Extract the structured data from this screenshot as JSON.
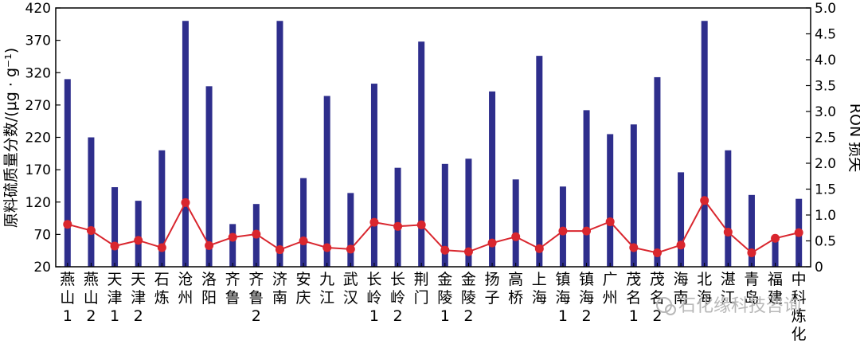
{
  "chart_data": {
    "type": "bar",
    "categories": [
      [
        "燕",
        "山",
        "1"
      ],
      [
        "燕",
        "山",
        "2"
      ],
      [
        "天",
        "津",
        "1"
      ],
      [
        "天",
        "津",
        "2"
      ],
      [
        "石",
        "炼"
      ],
      [
        "沧",
        "州"
      ],
      [
        "洛",
        "阳"
      ],
      [
        "齐",
        "鲁"
      ],
      [
        "齐",
        "鲁",
        "2"
      ],
      [
        "济",
        "南"
      ],
      [
        "安",
        "庆"
      ],
      [
        "九",
        "江"
      ],
      [
        "武",
        "汉"
      ],
      [
        "长",
        "岭",
        "1"
      ],
      [
        "长",
        "岭",
        "2"
      ],
      [
        "荆",
        "门"
      ],
      [
        "金",
        "陵",
        "1"
      ],
      [
        "金",
        "陵",
        "2"
      ],
      [
        "扬",
        "子"
      ],
      [
        "高",
        "桥"
      ],
      [
        "上",
        "海"
      ],
      [
        "镇",
        "海",
        "1"
      ],
      [
        "镇",
        "海",
        "2"
      ],
      [
        "广",
        "州"
      ],
      [
        "茂",
        "名",
        "1"
      ],
      [
        "茂",
        "名",
        "2"
      ],
      [
        "海",
        "南"
      ],
      [
        "北",
        "海"
      ],
      [
        "湛",
        "江"
      ],
      [
        "青",
        "岛"
      ],
      [
        "福",
        "建"
      ],
      [
        "中",
        "科",
        "炼",
        "化"
      ]
    ],
    "series": [
      {
        "axis": "left",
        "kind": "bar",
        "color": "#2e2e8c",
        "values": [
          310,
          220,
          143,
          122,
          200,
          400,
          299,
          86,
          117,
          400,
          157,
          284,
          134,
          303,
          173,
          368,
          179,
          187,
          291,
          155,
          346,
          144,
          262,
          225,
          240,
          313,
          166,
          400,
          200,
          131,
          60,
          125
        ]
      },
      {
        "axis": "right",
        "kind": "line",
        "color": "#d9262e",
        "values": [
          0.82,
          0.7,
          0.4,
          0.51,
          0.37,
          1.24,
          0.41,
          0.57,
          0.63,
          0.33,
          0.5,
          0.37,
          0.34,
          0.86,
          0.78,
          0.81,
          0.32,
          0.29,
          0.46,
          0.58,
          0.35,
          0.69,
          0.69,
          0.87,
          0.37,
          0.27,
          0.42,
          1.28,
          0.67,
          0.27,
          0.55,
          0.66
        ]
      }
    ],
    "ylabel": "原料硫质量分数/(μg · g⁻¹)",
    "ylabel_right": "RON 损失",
    "ylim": [
      20,
      420
    ],
    "yticks": [
      20,
      70,
      120,
      170,
      220,
      270,
      320,
      370,
      420
    ],
    "ylim_right": [
      0,
      5
    ],
    "yticks_right": [
      "0",
      "0.5",
      "1.0",
      "1.5",
      "2.0",
      "2.5",
      "3.0",
      "3.5",
      "4.0",
      "4.5",
      "5.0"
    ],
    "grid": false,
    "legend": "none"
  },
  "watermark": "石化缘科技咨询"
}
